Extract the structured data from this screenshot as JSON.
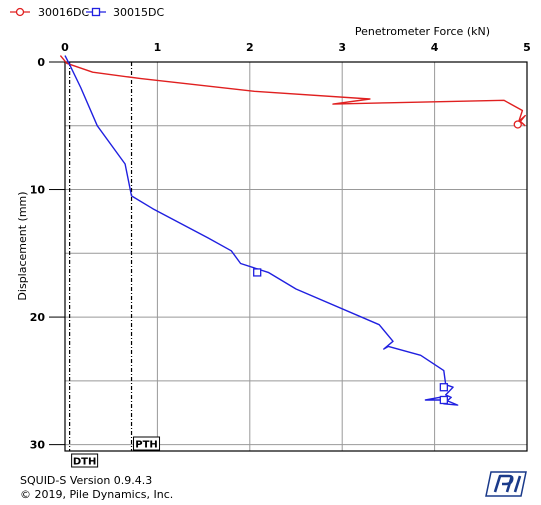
{
  "chart_data": {
    "type": "line",
    "x_label": "Penetrometer Force (kN)",
    "y_label": "Displacement (mm)",
    "xlim": [
      0,
      5
    ],
    "ylim": [
      0,
      30.5
    ],
    "x_ticks": [
      "0",
      "1",
      "2",
      "3",
      "4",
      "5"
    ],
    "y_ticks": [
      "0",
      "10",
      "20",
      "30"
    ],
    "x_tick_values": [
      0,
      1,
      2,
      3,
      4,
      5
    ],
    "y_tick_values": [
      0,
      10,
      20,
      30
    ],
    "grid": true,
    "legend_position": "top-left",
    "series": [
      {
        "name": "30016DC",
        "color": "#e02020",
        "marker": "circle",
        "points": [
          [
            -0.05,
            -0.5
          ],
          [
            0.02,
            0.1
          ],
          [
            0.3,
            0.8
          ],
          [
            0.82,
            1.3
          ],
          [
            2.05,
            2.3
          ],
          [
            3.3,
            2.9
          ],
          [
            2.9,
            3.3
          ],
          [
            3.5,
            3.2
          ],
          [
            4.75,
            3.0
          ],
          [
            4.95,
            3.8
          ],
          [
            4.9,
            4.9
          ],
          [
            4.98,
            4.2
          ],
          [
            4.92,
            4.6
          ],
          [
            4.98,
            5.0
          ]
        ],
        "marker_points": [
          [
            4.9,
            4.9
          ]
        ]
      },
      {
        "name": "30015DC",
        "color": "#2020e0",
        "marker": "square",
        "points": [
          [
            0.0,
            -0.5
          ],
          [
            0.05,
            0.2
          ],
          [
            0.17,
            2.0
          ],
          [
            0.35,
            5.0
          ],
          [
            0.65,
            8.0
          ],
          [
            0.72,
            10.5
          ],
          [
            0.95,
            11.5
          ],
          [
            1.55,
            13.8
          ],
          [
            1.8,
            14.8
          ],
          [
            1.9,
            15.8
          ],
          [
            2.2,
            16.5
          ],
          [
            2.5,
            17.8
          ],
          [
            3.4,
            20.6
          ],
          [
            3.55,
            21.9
          ],
          [
            3.45,
            22.5
          ],
          [
            3.5,
            22.3
          ],
          [
            3.85,
            23.0
          ],
          [
            4.1,
            24.2
          ],
          [
            4.12,
            25.3
          ],
          [
            4.2,
            25.5
          ],
          [
            4.12,
            26.1
          ],
          [
            4.18,
            26.3
          ],
          [
            4.1,
            26.8
          ],
          [
            4.25,
            26.9
          ],
          [
            4.05,
            26.3
          ],
          [
            3.9,
            26.5
          ],
          [
            4.15,
            26.5
          ]
        ],
        "marker_points": [
          [
            2.08,
            16.5
          ],
          [
            4.1,
            25.5
          ],
          [
            4.1,
            26.5
          ]
        ]
      }
    ],
    "reference_lines": [
      {
        "label": "DTH",
        "x": 0.05
      },
      {
        "label": "PTH",
        "x": 0.72
      }
    ]
  },
  "footer": {
    "version": "SQUID-S Version 0.9.4.3",
    "copyright": "© 2019, Pile Dynamics, Inc.",
    "logo_caption": "Pile Dynamics, Inc."
  }
}
